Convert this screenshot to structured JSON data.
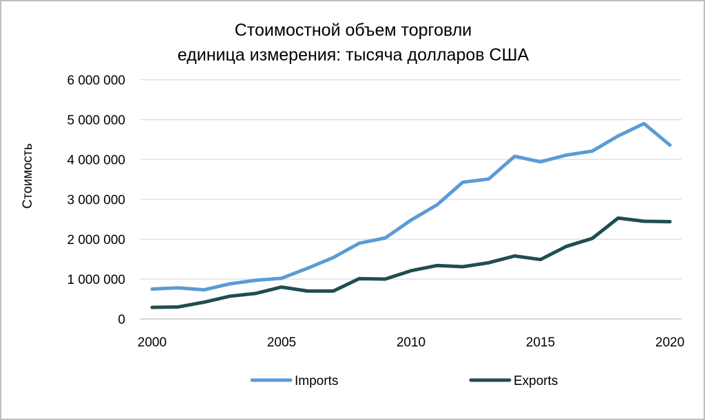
{
  "chart_data": {
    "type": "line",
    "title": "Стоимостной объем торговли",
    "subtitle": "единица измерения: тысяча долларов США",
    "xlabel": "",
    "ylabel": "Стоимость",
    "ylim": [
      0,
      6000000
    ],
    "y_ticks": [
      0,
      1000000,
      2000000,
      3000000,
      4000000,
      5000000,
      6000000
    ],
    "y_tick_labels": [
      "0",
      "1 000 000",
      "2 000 000",
      "3 000 000",
      "4 000 000",
      "5 000 000",
      "6 000 000"
    ],
    "x_ticks": [
      2000,
      2005,
      2010,
      2015,
      2020
    ],
    "x_tick_labels": [
      "2000",
      "2005",
      "2010",
      "2015",
      "2020"
    ],
    "xlim": [
      2000,
      2020
    ],
    "x": [
      2000,
      2001,
      2002,
      2003,
      2004,
      2005,
      2006,
      2007,
      2008,
      2009,
      2010,
      2011,
      2012,
      2013,
      2014,
      2015,
      2016,
      2017,
      2018,
      2019,
      2020
    ],
    "grid": true,
    "legend_position": "bottom",
    "series": [
      {
        "name": "Imports",
        "color": "#5b9bd5",
        "values": [
          750000,
          780000,
          730000,
          880000,
          970000,
          1020000,
          1270000,
          1540000,
          1900000,
          2030000,
          2480000,
          2860000,
          3430000,
          3510000,
          4080000,
          3940000,
          4110000,
          4210000,
          4590000,
          4900000,
          4360000
        ]
      },
      {
        "name": "Exports",
        "color": "#1f4e4f",
        "values": [
          290000,
          300000,
          420000,
          570000,
          640000,
          800000,
          700000,
          700000,
          1010000,
          1000000,
          1210000,
          1340000,
          1310000,
          1410000,
          1580000,
          1490000,
          1820000,
          2020000,
          2530000,
          2450000,
          2440000
        ]
      }
    ]
  }
}
